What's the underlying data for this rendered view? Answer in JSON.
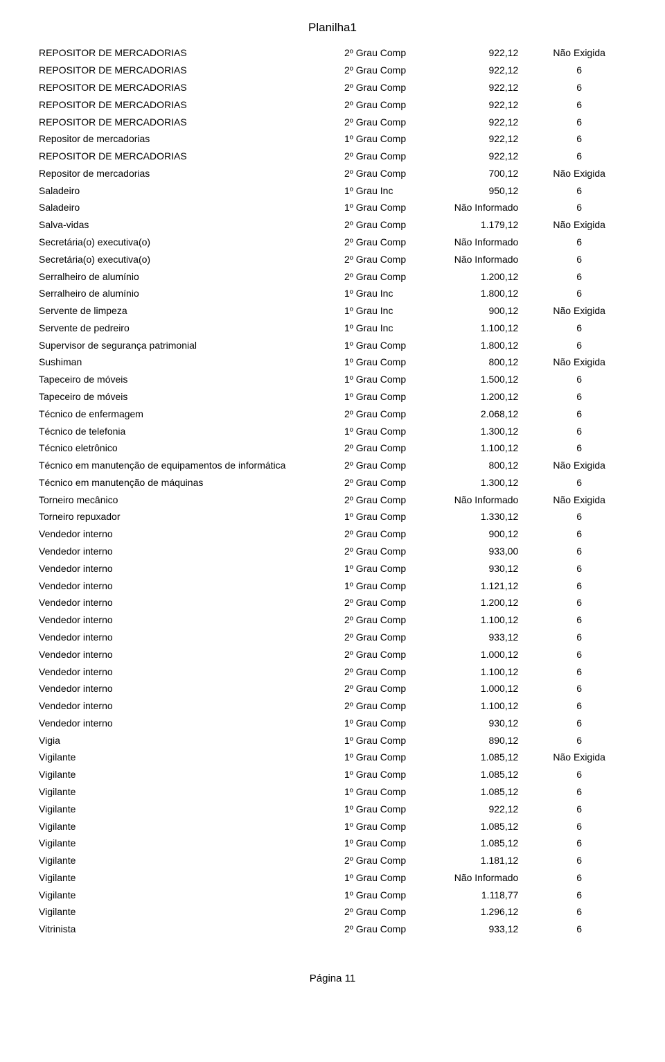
{
  "page_title": "Planilha1",
  "footer": "Página 11",
  "rows": [
    {
      "desc": "REPOSITOR DE MERCADORIAS",
      "grade": "2º Grau Comp",
      "salary": "922,12",
      "exp": "Não Exigida"
    },
    {
      "desc": "REPOSITOR DE MERCADORIAS",
      "grade": "2º Grau Comp",
      "salary": "922,12",
      "exp": "6"
    },
    {
      "desc": "REPOSITOR DE MERCADORIAS",
      "grade": "2º Grau Comp",
      "salary": "922,12",
      "exp": "6"
    },
    {
      "desc": "REPOSITOR DE MERCADORIAS",
      "grade": "2º Grau Comp",
      "salary": "922,12",
      "exp": "6"
    },
    {
      "desc": "REPOSITOR DE MERCADORIAS",
      "grade": "2º Grau Comp",
      "salary": "922,12",
      "exp": "6"
    },
    {
      "desc": "Repositor de mercadorias",
      "grade": "1º Grau Comp",
      "salary": "922,12",
      "exp": "6"
    },
    {
      "desc": "REPOSITOR DE MERCADORIAS",
      "grade": "2º Grau Comp",
      "salary": "922,12",
      "exp": "6"
    },
    {
      "desc": "Repositor de mercadorias",
      "grade": "2º Grau Comp",
      "salary": "700,12",
      "exp": "Não Exigida"
    },
    {
      "desc": "Saladeiro",
      "grade": "1º Grau Inc",
      "salary": "950,12",
      "exp": "6"
    },
    {
      "desc": "Saladeiro",
      "grade": "1º Grau Comp",
      "salary": "Não Informado",
      "exp": "6"
    },
    {
      "desc": "Salva-vidas",
      "grade": "2º Grau Comp",
      "salary": "1.179,12",
      "exp": "Não Exigida"
    },
    {
      "desc": "Secretária(o) executiva(o)",
      "grade": "2º Grau Comp",
      "salary": "Não Informado",
      "exp": "6"
    },
    {
      "desc": "Secretária(o) executiva(o)",
      "grade": "2º Grau Comp",
      "salary": "Não Informado",
      "exp": "6"
    },
    {
      "desc": "Serralheiro de alumínio",
      "grade": "2º Grau Comp",
      "salary": "1.200,12",
      "exp": "6"
    },
    {
      "desc": "Serralheiro de alumínio",
      "grade": "1º Grau Inc",
      "salary": "1.800,12",
      "exp": "6"
    },
    {
      "desc": "Servente de limpeza",
      "grade": "1º Grau Inc",
      "salary": "900,12",
      "exp": "Não Exigida"
    },
    {
      "desc": "Servente de pedreiro",
      "grade": "1º Grau Inc",
      "salary": "1.100,12",
      "exp": "6"
    },
    {
      "desc": "Supervisor de segurança patrimonial",
      "grade": "1º Grau Comp",
      "salary": "1.800,12",
      "exp": "6"
    },
    {
      "desc": "Sushiman",
      "grade": "1º Grau Comp",
      "salary": "800,12",
      "exp": "Não Exigida"
    },
    {
      "desc": "Tapeceiro de móveis",
      "grade": "1º Grau Comp",
      "salary": "1.500,12",
      "exp": "6"
    },
    {
      "desc": "Tapeceiro de móveis",
      "grade": "1º Grau Comp",
      "salary": "1.200,12",
      "exp": "6"
    },
    {
      "desc": "Técnico de enfermagem",
      "grade": "2º Grau Comp",
      "salary": "2.068,12",
      "exp": "6"
    },
    {
      "desc": "Técnico de telefonia",
      "grade": "1º Grau Comp",
      "salary": "1.300,12",
      "exp": "6"
    },
    {
      "desc": "Técnico eletrônico",
      "grade": "2º Grau Comp",
      "salary": "1.100,12",
      "exp": "6"
    },
    {
      "desc": "Técnico em manutenção de equipamentos de informática",
      "grade": "2º Grau Comp",
      "salary": "800,12",
      "exp": "Não Exigida"
    },
    {
      "desc": "Técnico em manutenção de máquinas",
      "grade": "2º Grau Comp",
      "salary": "1.300,12",
      "exp": "6"
    },
    {
      "desc": "Torneiro mecânico",
      "grade": "2º Grau Comp",
      "salary": "Não Informado",
      "exp": "Não Exigida"
    },
    {
      "desc": "Torneiro repuxador",
      "grade": "1º Grau Comp",
      "salary": "1.330,12",
      "exp": "6"
    },
    {
      "desc": "Vendedor interno",
      "grade": "2º Grau Comp",
      "salary": "900,12",
      "exp": "6"
    },
    {
      "desc": "Vendedor interno",
      "grade": "2º Grau Comp",
      "salary": "933,00",
      "exp": "6"
    },
    {
      "desc": "Vendedor interno",
      "grade": "1º Grau Comp",
      "salary": "930,12",
      "exp": "6"
    },
    {
      "desc": "Vendedor interno",
      "grade": "1º Grau Comp",
      "salary": "1.121,12",
      "exp": "6"
    },
    {
      "desc": "Vendedor interno",
      "grade": "2º Grau Comp",
      "salary": "1.200,12",
      "exp": "6"
    },
    {
      "desc": "Vendedor interno",
      "grade": "2º Grau Comp",
      "salary": "1.100,12",
      "exp": "6"
    },
    {
      "desc": "Vendedor interno",
      "grade": "2º Grau Comp",
      "salary": "933,12",
      "exp": "6"
    },
    {
      "desc": "Vendedor interno",
      "grade": "2º Grau Comp",
      "salary": "1.000,12",
      "exp": "6"
    },
    {
      "desc": "Vendedor interno",
      "grade": "2º Grau Comp",
      "salary": "1.100,12",
      "exp": "6"
    },
    {
      "desc": "Vendedor interno",
      "grade": "2º Grau Comp",
      "salary": "1.000,12",
      "exp": "6"
    },
    {
      "desc": "Vendedor interno",
      "grade": "2º Grau Comp",
      "salary": "1.100,12",
      "exp": "6"
    },
    {
      "desc": "Vendedor interno",
      "grade": "1º Grau Comp",
      "salary": "930,12",
      "exp": "6"
    },
    {
      "desc": "Vigia",
      "grade": "1º Grau Comp",
      "salary": "890,12",
      "exp": "6"
    },
    {
      "desc": "Vigilante",
      "grade": "1º Grau Comp",
      "salary": "1.085,12",
      "exp": "Não Exigida"
    },
    {
      "desc": "Vigilante",
      "grade": "1º Grau Comp",
      "salary": "1.085,12",
      "exp": "6"
    },
    {
      "desc": "Vigilante",
      "grade": "1º Grau Comp",
      "salary": "1.085,12",
      "exp": "6"
    },
    {
      "desc": "Vigilante",
      "grade": "1º Grau Comp",
      "salary": "922,12",
      "exp": "6"
    },
    {
      "desc": "Vigilante",
      "grade": "1º Grau Comp",
      "salary": "1.085,12",
      "exp": "6"
    },
    {
      "desc": "Vigilante",
      "grade": "1º Grau Comp",
      "salary": "1.085,12",
      "exp": "6"
    },
    {
      "desc": "Vigilante",
      "grade": "2º Grau Comp",
      "salary": "1.181,12",
      "exp": "6"
    },
    {
      "desc": "Vigilante",
      "grade": "1º Grau Comp",
      "salary": "Não Informado",
      "exp": "6"
    },
    {
      "desc": "Vigilante",
      "grade": "1º Grau Comp",
      "salary": "1.118,77",
      "exp": "6"
    },
    {
      "desc": "Vigilante",
      "grade": "2º Grau Comp",
      "salary": "1.296,12",
      "exp": "6"
    },
    {
      "desc": "Vitrinista",
      "grade": "2º Grau Comp",
      "salary": "933,12",
      "exp": "6"
    }
  ]
}
